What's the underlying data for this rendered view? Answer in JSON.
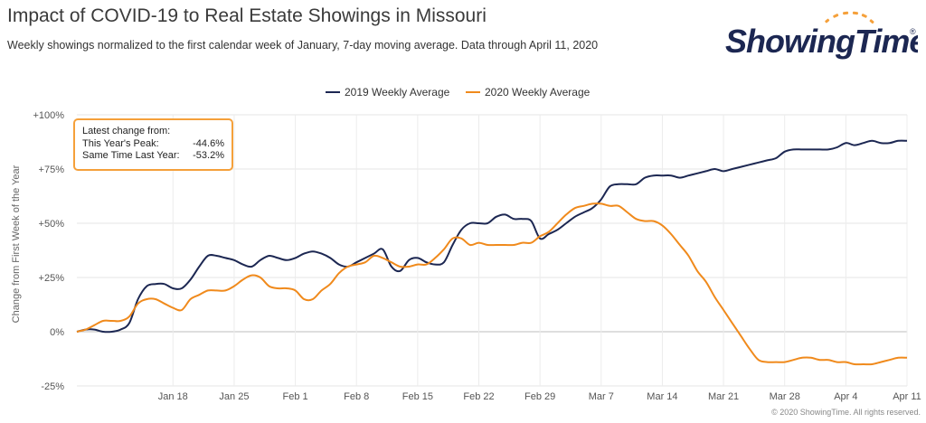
{
  "header": {
    "title": "Impact of COVID-19 to Real Estate Showings in Missouri",
    "subtitle": "Weekly showings normalized to the first calendar week of January, 7-day moving average. Data through April 11, 2020"
  },
  "logo": {
    "text": "ShowingTime",
    "registered": "®"
  },
  "annotation": {
    "heading": "Latest change from:",
    "rows": [
      {
        "label": "This Year's Peak:",
        "value": "-44.6%"
      },
      {
        "label": "Same Time Last Year:",
        "value": "-53.2%"
      }
    ]
  },
  "copyright": "© 2020 ShowingTime. All rights reserved.",
  "chart_data": {
    "type": "line",
    "title": "Impact of COVID-19 to Real Estate Showings in Missouri",
    "ylabel": "Change from First Week of the Year",
    "ylim": [
      -25,
      100
    ],
    "y_ticks": [
      -25,
      0,
      25,
      50,
      75,
      100
    ],
    "y_tick_labels": [
      "-25%",
      "0%",
      "+25%",
      "+50%",
      "+75%",
      "+100%"
    ],
    "x_start": "Jan 7",
    "x_end": "Apr 11",
    "x_tick_labels": [
      "Jan 18",
      "Jan 25",
      "Feb 1",
      "Feb 8",
      "Feb 15",
      "Feb 22",
      "Feb 29",
      "Mar 7",
      "Mar 14",
      "Mar 21",
      "Mar 28",
      "Apr 4",
      "Apr 11"
    ],
    "grid": {
      "horizontal": true,
      "vertical": true
    },
    "legend_position": "top-center",
    "series": [
      {
        "name": "2019 Weekly Average",
        "color": "#1c2752",
        "x": [
          "Jan 7",
          "Jan 8",
          "Jan 9",
          "Jan 10",
          "Jan 11",
          "Jan 12",
          "Jan 13",
          "Jan 14",
          "Jan 15",
          "Jan 16",
          "Jan 17",
          "Jan 18",
          "Jan 19",
          "Jan 20",
          "Jan 21",
          "Jan 22",
          "Jan 23",
          "Jan 24",
          "Jan 25",
          "Jan 26",
          "Jan 27",
          "Jan 28",
          "Jan 29",
          "Jan 30",
          "Jan 31",
          "Feb 1",
          "Feb 2",
          "Feb 3",
          "Feb 4",
          "Feb 5",
          "Feb 6",
          "Feb 7",
          "Feb 8",
          "Feb 9",
          "Feb 10",
          "Feb 11",
          "Feb 12",
          "Feb 13",
          "Feb 14",
          "Feb 15",
          "Feb 16",
          "Feb 17",
          "Feb 18",
          "Feb 19",
          "Feb 20",
          "Feb 21",
          "Feb 22",
          "Feb 23",
          "Feb 24",
          "Feb 25",
          "Feb 26",
          "Feb 27",
          "Feb 28",
          "Feb 29",
          "Mar 1",
          "Mar 2",
          "Mar 3",
          "Mar 4",
          "Mar 5",
          "Mar 6",
          "Mar 7",
          "Mar 8",
          "Mar 9",
          "Mar 10",
          "Mar 11",
          "Mar 12",
          "Mar 13",
          "Mar 14",
          "Mar 15",
          "Mar 16",
          "Mar 17",
          "Mar 18",
          "Mar 19",
          "Mar 20",
          "Mar 21",
          "Mar 22",
          "Mar 23",
          "Mar 24",
          "Mar 25",
          "Mar 26",
          "Mar 27",
          "Mar 28",
          "Mar 29",
          "Mar 30",
          "Mar 31",
          "Apr 1",
          "Apr 2",
          "Apr 3",
          "Apr 4",
          "Apr 5",
          "Apr 6",
          "Apr 7",
          "Apr 8",
          "Apr 9",
          "Apr 10",
          "Apr 11"
        ],
        "values": [
          0,
          1,
          1,
          0,
          0,
          1,
          4,
          15,
          21,
          22,
          22,
          20,
          20,
          24,
          30,
          35,
          35,
          34,
          33,
          31,
          30,
          33,
          35,
          34,
          33,
          34,
          36,
          37,
          36,
          34,
          31,
          30,
          32,
          34,
          36,
          38,
          30,
          28,
          33,
          34,
          32,
          31,
          32,
          40,
          47,
          50,
          50,
          50,
          53,
          54,
          52,
          52,
          51,
          43,
          45,
          47,
          50,
          53,
          55,
          57,
          61,
          67,
          68,
          68,
          68,
          71,
          72,
          72,
          72,
          71,
          72,
          73,
          74,
          75,
          74,
          75,
          76,
          77,
          78,
          79,
          80,
          83,
          84,
          84,
          84,
          84,
          84,
          85,
          87,
          86,
          87,
          88,
          87,
          87,
          88,
          88
        ]
      },
      {
        "name": "2020 Weekly Average",
        "color": "#f08a1c",
        "x": [
          "Jan 7",
          "Jan 8",
          "Jan 9",
          "Jan 10",
          "Jan 11",
          "Jan 12",
          "Jan 13",
          "Jan 14",
          "Jan 15",
          "Jan 16",
          "Jan 17",
          "Jan 18",
          "Jan 19",
          "Jan 20",
          "Jan 21",
          "Jan 22",
          "Jan 23",
          "Jan 24",
          "Jan 25",
          "Jan 26",
          "Jan 27",
          "Jan 28",
          "Jan 29",
          "Jan 30",
          "Jan 31",
          "Feb 1",
          "Feb 2",
          "Feb 3",
          "Feb 4",
          "Feb 5",
          "Feb 6",
          "Feb 7",
          "Feb 8",
          "Feb 9",
          "Feb 10",
          "Feb 11",
          "Feb 12",
          "Feb 13",
          "Feb 14",
          "Feb 15",
          "Feb 16",
          "Feb 17",
          "Feb 18",
          "Feb 19",
          "Feb 20",
          "Feb 21",
          "Feb 22",
          "Feb 23",
          "Feb 24",
          "Feb 25",
          "Feb 26",
          "Feb 27",
          "Feb 28",
          "Feb 29",
          "Mar 1",
          "Mar 2",
          "Mar 3",
          "Mar 4",
          "Mar 5",
          "Mar 6",
          "Mar 7",
          "Mar 8",
          "Mar 9",
          "Mar 10",
          "Mar 11",
          "Mar 12",
          "Mar 13",
          "Mar 14",
          "Mar 15",
          "Mar 16",
          "Mar 17",
          "Mar 18",
          "Mar 19",
          "Mar 20",
          "Mar 21",
          "Mar 22",
          "Mar 23",
          "Mar 24",
          "Mar 25",
          "Mar 26",
          "Mar 27",
          "Mar 28",
          "Mar 29",
          "Mar 30",
          "Mar 31",
          "Apr 1",
          "Apr 2",
          "Apr 3",
          "Apr 4",
          "Apr 5",
          "Apr 6",
          "Apr 7",
          "Apr 8",
          "Apr 9",
          "Apr 10",
          "Apr 11"
        ],
        "values": [
          0,
          1,
          3,
          5,
          5,
          5,
          7,
          13,
          15,
          15,
          13,
          11,
          10,
          15,
          17,
          19,
          19,
          19,
          21,
          24,
          26,
          25,
          21,
          20,
          20,
          19,
          15,
          15,
          19,
          22,
          27,
          30,
          31,
          32,
          35,
          34,
          32,
          30,
          30,
          31,
          31,
          34,
          38,
          43,
          43,
          40,
          41,
          40,
          40,
          40,
          40,
          41,
          41,
          44,
          46,
          50,
          54,
          57,
          58,
          59,
          59,
          58,
          58,
          55,
          52,
          51,
          51,
          49,
          45,
          40,
          35,
          28,
          23,
          16,
          10,
          4,
          -2,
          -8,
          -13,
          -14,
          -14,
          -14,
          -13,
          -12,
          -12,
          -13,
          -13,
          -14,
          -14,
          -15,
          -15,
          -15,
          -14,
          -13,
          -12,
          -12
        ]
      }
    ]
  }
}
